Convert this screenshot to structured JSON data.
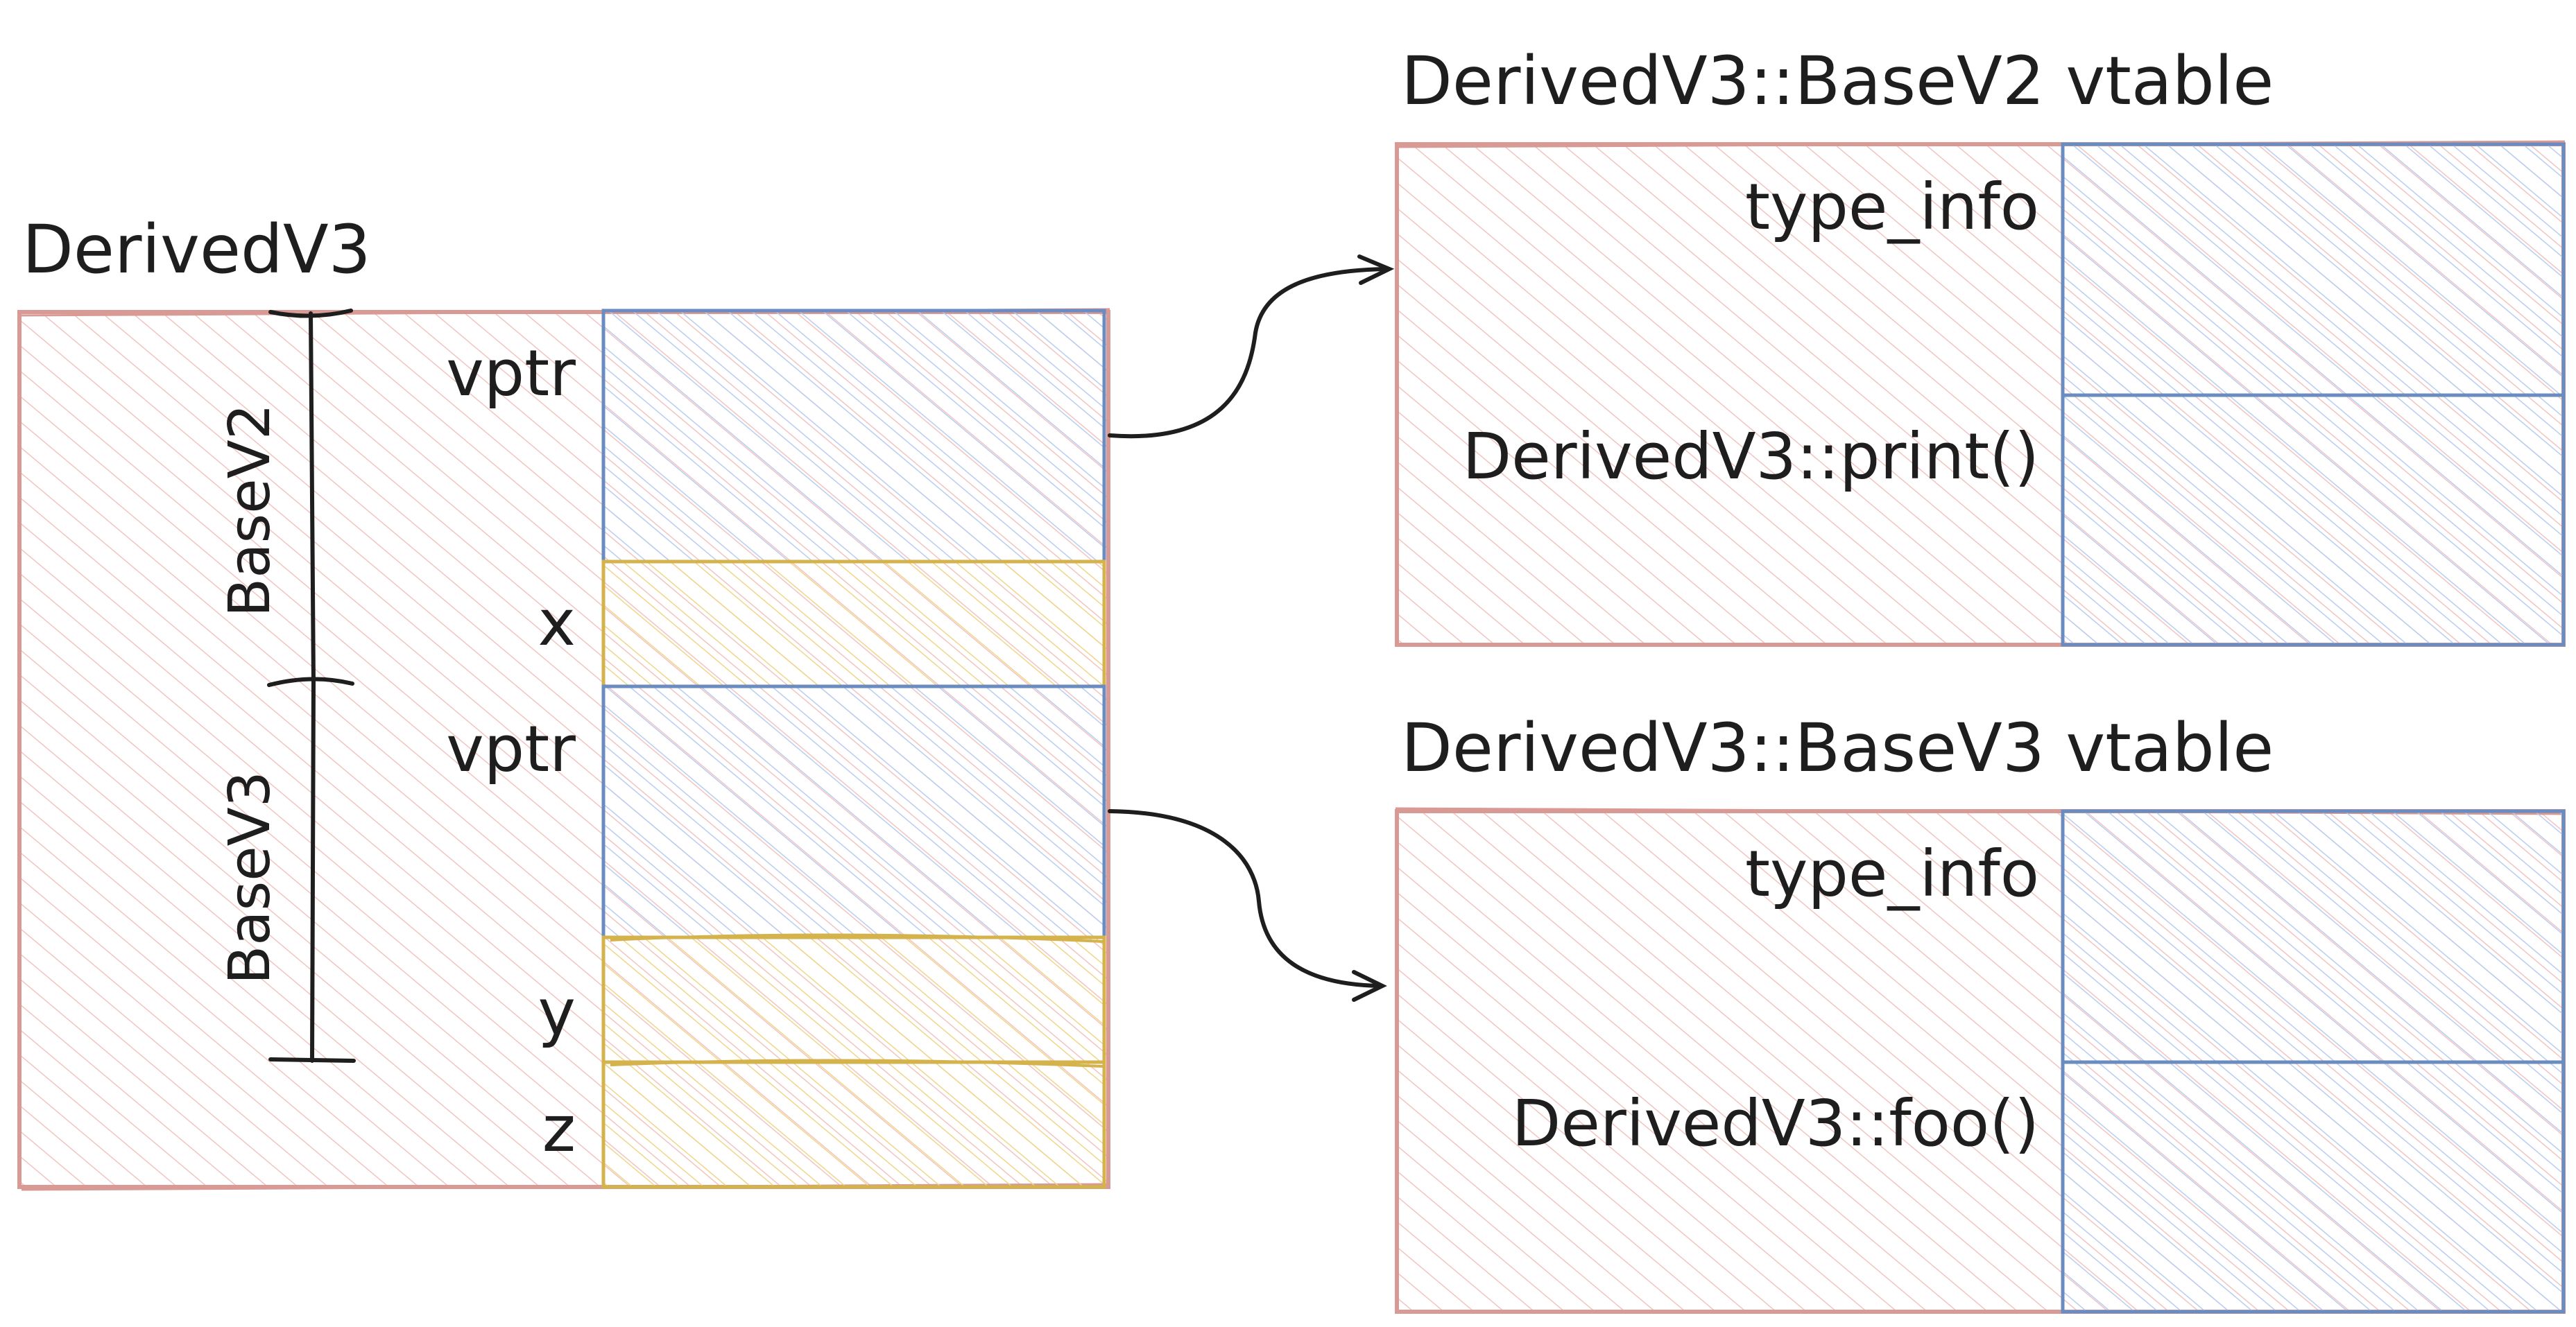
{
  "object": {
    "title": "DerivedV3",
    "slots": [
      {
        "label": "vptr",
        "kind": "pointer"
      },
      {
        "label": "x",
        "kind": "data"
      },
      {
        "label": "vptr",
        "kind": "pointer"
      },
      {
        "label": "y",
        "kind": "data"
      },
      {
        "label": "z",
        "kind": "data"
      }
    ],
    "brackets": [
      {
        "label": "BaseV2"
      },
      {
        "label": "BaseV3"
      }
    ]
  },
  "vtables": [
    {
      "title": "DerivedV3::BaseV2 vtable",
      "entries": [
        "type_info",
        "DerivedV3::print()"
      ]
    },
    {
      "title": "DerivedV3::BaseV3 vtable",
      "entries": [
        "type_info",
        "DerivedV3::foo()"
      ]
    }
  ],
  "colors": {
    "outer_stroke": "#d99a96",
    "outer_fill": "#f7d6d4",
    "pointer_stroke": "#6b8cc0",
    "pointer_fill": "#c9d9f5",
    "data_stroke": "#d4b24c",
    "data_fill": "#f7e6b0",
    "ink": "#1e1e1e"
  }
}
